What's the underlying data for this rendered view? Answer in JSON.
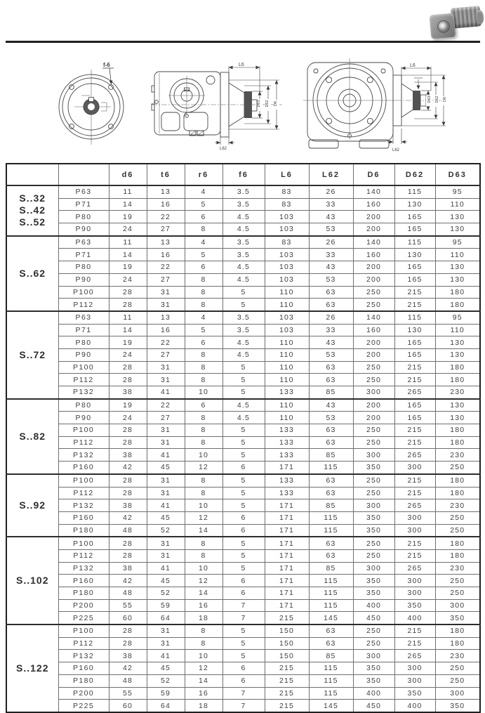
{
  "figures": {
    "photo_icon": "gearmotor-photo",
    "flange_hole_label": "f-6",
    "dim_L6": "L6",
    "dim_L62": "L62",
    "dim_D6": "D6",
    "dim_D62": "D62",
    "dim_D63": "D63"
  },
  "table": {
    "columns": [
      "d6",
      "t6",
      "r6",
      "f6",
      "L6",
      "L62",
      "D6",
      "D62",
      "D63"
    ],
    "groups": [
      {
        "label_lines": [
          "S..32",
          "S..42",
          "S..52"
        ],
        "rows": [
          {
            "model": "P63",
            "values": [
              "11",
              "13",
              "4",
              "3.5",
              "83",
              "26",
              "140",
              "115",
              "95"
            ]
          },
          {
            "model": "P71",
            "values": [
              "14",
              "16",
              "5",
              "3.5",
              "83",
              "33",
              "160",
              "130",
              "110"
            ]
          },
          {
            "model": "P80",
            "values": [
              "19",
              "22",
              "6",
              "4.5",
              "103",
              "43",
              "200",
              "165",
              "130"
            ]
          },
          {
            "model": "P90",
            "values": [
              "24",
              "27",
              "8",
              "4.5",
              "103",
              "53",
              "200",
              "165",
              "130"
            ]
          }
        ]
      },
      {
        "label_lines": [
          "S..62"
        ],
        "rows": [
          {
            "model": "P63",
            "values": [
              "11",
              "13",
              "4",
              "3.5",
              "83",
              "26",
              "140",
              "115",
              "95"
            ]
          },
          {
            "model": "P71",
            "values": [
              "14",
              "16",
              "5",
              "3.5",
              "103",
              "33",
              "160",
              "130",
              "110"
            ]
          },
          {
            "model": "P80",
            "values": [
              "19",
              "22",
              "6",
              "4.5",
              "103",
              "43",
              "200",
              "165",
              "130"
            ]
          },
          {
            "model": "P90",
            "values": [
              "24",
              "27",
              "8",
              "4.5",
              "103",
              "53",
              "200",
              "165",
              "130"
            ]
          },
          {
            "model": "P100",
            "values": [
              "28",
              "31",
              "8",
              "5",
              "110",
              "63",
              "250",
              "215",
              "180"
            ]
          },
          {
            "model": "P112",
            "values": [
              "28",
              "31",
              "8",
              "5",
              "110",
              "63",
              "250",
              "215",
              "180"
            ]
          }
        ]
      },
      {
        "label_lines": [
          "S..72"
        ],
        "rows": [
          {
            "model": "P63",
            "values": [
              "11",
              "13",
              "4",
              "3.5",
              "103",
              "26",
              "140",
              "115",
              "95"
            ]
          },
          {
            "model": "P71",
            "values": [
              "14",
              "16",
              "5",
              "3.5",
              "103",
              "33",
              "160",
              "130",
              "110"
            ]
          },
          {
            "model": "P80",
            "values": [
              "19",
              "22",
              "6",
              "4.5",
              "110",
              "43",
              "200",
              "165",
              "130"
            ]
          },
          {
            "model": "P90",
            "values": [
              "24",
              "27",
              "8",
              "4.5",
              "110",
              "53",
              "200",
              "165",
              "130"
            ]
          },
          {
            "model": "P100",
            "values": [
              "28",
              "31",
              "8",
              "5",
              "110",
              "63",
              "250",
              "215",
              "180"
            ]
          },
          {
            "model": "P112",
            "values": [
              "28",
              "31",
              "8",
              "5",
              "110",
              "63",
              "250",
              "215",
              "180"
            ]
          },
          {
            "model": "P132",
            "values": [
              "38",
              "41",
              "10",
              "5",
              "133",
              "85",
              "300",
              "265",
              "230"
            ]
          }
        ]
      },
      {
        "label_lines": [
          "S..82"
        ],
        "rows": [
          {
            "model": "P80",
            "values": [
              "19",
              "22",
              "6",
              "4.5",
              "110",
              "43",
              "200",
              "165",
              "130"
            ]
          },
          {
            "model": "P90",
            "values": [
              "24",
              "27",
              "8",
              "4.5",
              "110",
              "53",
              "200",
              "165",
              "130"
            ]
          },
          {
            "model": "P100",
            "values": [
              "28",
              "31",
              "8",
              "5",
              "133",
              "63",
              "250",
              "215",
              "180"
            ]
          },
          {
            "model": "P112",
            "values": [
              "28",
              "31",
              "8",
              "5",
              "133",
              "63",
              "250",
              "215",
              "180"
            ]
          },
          {
            "model": "P132",
            "values": [
              "38",
              "41",
              "10",
              "5",
              "133",
              "85",
              "300",
              "265",
              "230"
            ]
          },
          {
            "model": "P160",
            "values": [
              "42",
              "45",
              "12",
              "6",
              "171",
              "115",
              "350",
              "300",
              "250"
            ]
          }
        ]
      },
      {
        "label_lines": [
          "S..92"
        ],
        "rows": [
          {
            "model": "P100",
            "values": [
              "28",
              "31",
              "8",
              "5",
              "133",
              "63",
              "250",
              "215",
              "180"
            ]
          },
          {
            "model": "P112",
            "values": [
              "28",
              "31",
              "8",
              "5",
              "133",
              "63",
              "250",
              "215",
              "180"
            ]
          },
          {
            "model": "P132",
            "values": [
              "38",
              "41",
              "10",
              "5",
              "171",
              "85",
              "300",
              "265",
              "230"
            ]
          },
          {
            "model": "P160",
            "values": [
              "42",
              "45",
              "12",
              "6",
              "171",
              "115",
              "350",
              "300",
              "250"
            ]
          },
          {
            "model": "P180",
            "values": [
              "48",
              "52",
              "14",
              "6",
              "171",
              "115",
              "350",
              "300",
              "250"
            ]
          }
        ]
      },
      {
        "label_lines": [
          "S..102"
        ],
        "rows": [
          {
            "model": "P100",
            "values": [
              "28",
              "31",
              "8",
              "5",
              "171",
              "63",
              "250",
              "215",
              "180"
            ]
          },
          {
            "model": "P112",
            "values": [
              "28",
              "31",
              "8",
              "5",
              "171",
              "63",
              "250",
              "215",
              "180"
            ]
          },
          {
            "model": "P132",
            "values": [
              "38",
              "41",
              "10",
              "5",
              "171",
              "85",
              "300",
              "265",
              "230"
            ]
          },
          {
            "model": "P160",
            "values": [
              "42",
              "45",
              "12",
              "6",
              "171",
              "115",
              "350",
              "300",
              "250"
            ]
          },
          {
            "model": "P180",
            "values": [
              "48",
              "52",
              "14",
              "6",
              "171",
              "115",
              "350",
              "300",
              "250"
            ]
          },
          {
            "model": "P200",
            "values": [
              "55",
              "59",
              "16",
              "7",
              "171",
              "115",
              "400",
              "350",
              "300"
            ]
          },
          {
            "model": "P225",
            "values": [
              "60",
              "64",
              "18",
              "7",
              "215",
              "145",
              "450",
              "400",
              "350"
            ]
          }
        ]
      },
      {
        "label_lines": [
          "S..122"
        ],
        "rows": [
          {
            "model": "P100",
            "values": [
              "28",
              "31",
              "8",
              "5",
              "150",
              "63",
              "250",
              "215",
              "180"
            ]
          },
          {
            "model": "P112",
            "values": [
              "28",
              "31",
              "8",
              "5",
              "150",
              "63",
              "250",
              "215",
              "180"
            ]
          },
          {
            "model": "P132",
            "values": [
              "38",
              "41",
              "10",
              "5",
              "150",
              "85",
              "300",
              "265",
              "230"
            ]
          },
          {
            "model": "P160",
            "values": [
              "42",
              "45",
              "12",
              "6",
              "215",
              "115",
              "350",
              "300",
              "250"
            ]
          },
          {
            "model": "P180",
            "values": [
              "48",
              "52",
              "14",
              "6",
              "215",
              "115",
              "350",
              "300",
              "250"
            ]
          },
          {
            "model": "P200",
            "values": [
              "55",
              "59",
              "16",
              "7",
              "215",
              "115",
              "400",
              "350",
              "300"
            ]
          },
          {
            "model": "P225",
            "values": [
              "60",
              "64",
              "18",
              "7",
              "215",
              "145",
              "450",
              "400",
              "350"
            ]
          }
        ]
      }
    ]
  }
}
